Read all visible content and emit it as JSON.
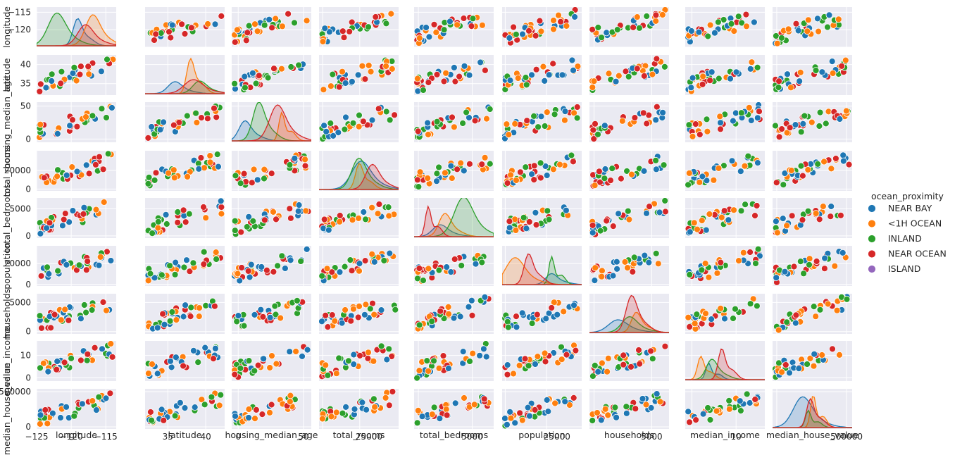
{
  "chart_data": {
    "type": "scatter",
    "variables": [
      "longitude",
      "latitude",
      "housing_median_age",
      "total_rooms",
      "total_bedrooms",
      "population",
      "households",
      "median_income",
      "median_house_value"
    ],
    "ranges": {
      "longitude": [
        -125,
        -113.5
      ],
      "latitude": [
        32,
        42.5
      ],
      "housing_median_age": [
        -5,
        56
      ],
      "total_rooms": [
        -2000,
        41000
      ],
      "total_bedrooms": [
        -400,
        7000
      ],
      "population": [
        -1500,
        37000
      ],
      "households": [
        -400,
        6500
      ],
      "median_income": [
        -1.5,
        16.5
      ],
      "median_house_value": [
        -30000,
        540000
      ]
    },
    "ticks": {
      "longitude": [
        -125,
        -120,
        -115
      ],
      "latitude": [
        35,
        40
      ],
      "housing_median_age": [
        0,
        50
      ],
      "total_rooms": [
        0,
        20000
      ],
      "total_bedrooms": [
        0,
        5000
      ],
      "population": [
        0,
        20000
      ],
      "households": [
        0,
        5000
      ],
      "median_income": [
        0,
        10
      ],
      "median_house_value": [
        0,
        500000
      ]
    },
    "ytick_labels": {
      "longitude": [
        "−120",
        "−115"
      ],
      "latitude": [
        "35",
        "40"
      ],
      "housing_median_age": [
        "0",
        "50"
      ],
      "total_rooms": [
        "0",
        "20000"
      ],
      "total_bedrooms": [
        "0",
        "5000"
      ],
      "population": [
        "0",
        "20000"
      ],
      "households": [
        "0",
        "5000"
      ],
      "median_income": [
        "0",
        "10"
      ],
      "median_house_value": [
        "0",
        "500000"
      ]
    },
    "xtick_labels": {
      "longitude": [
        "−125",
        "−120",
        "−115"
      ],
      "latitude": [
        "35",
        "40"
      ],
      "housing_median_age": [
        "0",
        "50"
      ],
      "total_rooms": [
        "25000"
      ],
      "total_bedrooms": [
        "5000"
      ],
      "population": [
        "25000"
      ],
      "households": [
        "5000"
      ],
      "median_income": [
        "10"
      ],
      "median_house_value": [
        "500000"
      ]
    },
    "xtick_values": {
      "longitude": [
        -125,
        -120,
        -115
      ],
      "latitude": [
        35,
        40
      ],
      "housing_median_age": [
        0,
        50
      ],
      "total_rooms": [
        25000
      ],
      "total_bedrooms": [
        5000
      ],
      "population": [
        25000
      ],
      "households": [
        5000
      ],
      "median_income": [
        10
      ],
      "median_house_value": [
        500000
      ]
    },
    "legend": {
      "title": "ocean_proximity",
      "placement": "right",
      "entries": [
        {
          "name": "NEAR BAY",
          "color": "#1f77b4"
        },
        {
          "name": "<1H OCEAN",
          "color": "#ff7f0e"
        },
        {
          "name": "INLAND",
          "color": "#2ca02c"
        },
        {
          "name": "NEAR OCEAN",
          "color": "#d62728"
        },
        {
          "name": "ISLAND",
          "color": "#9467bd"
        }
      ]
    },
    "grid": true,
    "diagonal": "kde",
    "axes_facecolor": "#eaeaf2",
    "grid_color": "#ffffff"
  }
}
